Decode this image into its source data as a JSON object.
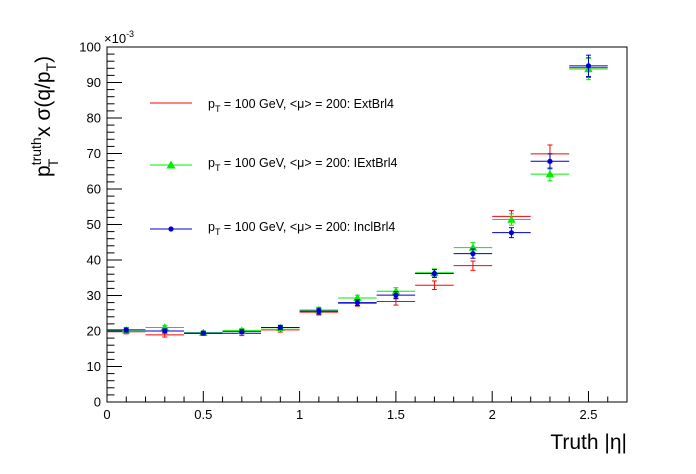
{
  "chart_data": {
    "type": "scatter",
    "title": "",
    "xlabel": "Truth |η|",
    "ylabel": {
      "base": "p",
      "sup": "truth",
      "sub": "T",
      "mid": " x σ(q/p",
      "sub2": "T",
      "end": ")"
    },
    "xlim": [
      0,
      2.7
    ],
    "ylim": [
      0,
      100
    ],
    "y_multiplier": "×10",
    "y_multiplier_exp": "-3",
    "xticks": [
      "0",
      "0.5",
      "1",
      "1.5",
      "2",
      "2.5"
    ],
    "yticks": [
      "0",
      "10",
      "20",
      "30",
      "40",
      "50",
      "60",
      "70",
      "80",
      "90",
      "100"
    ],
    "grid": false,
    "legend_position": "upper-left inside",
    "series": [
      {
        "name": "ExtBrl4",
        "legend": {
          "pre": "p",
          "sub": "T",
          "post": " = 100 GeV, <μ> = 200: ExtBrl4"
        },
        "color": "#ff0000",
        "marker": "none",
        "points": [
          {
            "x": 0.1,
            "xerr": 0.1,
            "y": 19.8,
            "yerr": 0.6
          },
          {
            "x": 0.3,
            "xerr": 0.1,
            "y": 18.9,
            "yerr": 0.6
          },
          {
            "x": 0.5,
            "xerr": 0.1,
            "y": 19.3,
            "yerr": 0.5
          },
          {
            "x": 0.7,
            "xerr": 0.1,
            "y": 19.3,
            "yerr": 0.6
          },
          {
            "x": 0.9,
            "xerr": 0.1,
            "y": 20.3,
            "yerr": 0.6
          },
          {
            "x": 1.1,
            "xerr": 0.1,
            "y": 25.3,
            "yerr": 0.8
          },
          {
            "x": 1.3,
            "xerr": 0.1,
            "y": 27.8,
            "yerr": 0.8
          },
          {
            "x": 1.5,
            "xerr": 0.1,
            "y": 28.3,
            "yerr": 1.0
          },
          {
            "x": 1.7,
            "xerr": 0.1,
            "y": 32.9,
            "yerr": 1.2
          },
          {
            "x": 1.9,
            "xerr": 0.1,
            "y": 38.4,
            "yerr": 1.3
          },
          {
            "x": 2.1,
            "xerr": 0.1,
            "y": 52.3,
            "yerr": 1.6
          },
          {
            "x": 2.3,
            "xerr": 0.1,
            "y": 69.9,
            "yerr": 2.5
          },
          {
            "x": 2.5,
            "xerr": 0.1,
            "y": 94.2,
            "yerr": 2.8
          }
        ]
      },
      {
        "name": "IExtBrl4",
        "legend": {
          "pre": "p",
          "sub": "T",
          "post": " = 100 GeV, <μ> = 200: IExtBrl4"
        },
        "color": "#00ee00",
        "marker": "triangle",
        "points": [
          {
            "x": 0.1,
            "xerr": 0.1,
            "y": 20.2,
            "yerr": 0.6
          },
          {
            "x": 0.3,
            "xerr": 0.1,
            "y": 21.0,
            "yerr": 0.6
          },
          {
            "x": 0.5,
            "xerr": 0.1,
            "y": 19.5,
            "yerr": 0.5
          },
          {
            "x": 0.7,
            "xerr": 0.1,
            "y": 20.1,
            "yerr": 0.6
          },
          {
            "x": 0.9,
            "xerr": 0.1,
            "y": 20.9,
            "yerr": 0.6
          },
          {
            "x": 1.1,
            "xerr": 0.1,
            "y": 25.9,
            "yerr": 0.8
          },
          {
            "x": 1.3,
            "xerr": 0.1,
            "y": 29.3,
            "yerr": 0.8
          },
          {
            "x": 1.5,
            "xerr": 0.1,
            "y": 31.2,
            "yerr": 1.0
          },
          {
            "x": 1.7,
            "xerr": 0.1,
            "y": 36.4,
            "yerr": 1.1
          },
          {
            "x": 1.9,
            "xerr": 0.1,
            "y": 43.5,
            "yerr": 1.4
          },
          {
            "x": 2.1,
            "xerr": 0.1,
            "y": 51.4,
            "yerr": 1.6
          },
          {
            "x": 2.3,
            "xerr": 0.1,
            "y": 64.2,
            "yerr": 1.9
          },
          {
            "x": 2.5,
            "xerr": 0.1,
            "y": 93.8,
            "yerr": 3.0
          }
        ]
      },
      {
        "name": "InclBrl4",
        "legend": {
          "pre": "p",
          "sub": "T",
          "post": " = 100 GeV, <μ> = 200: InclBrl4"
        },
        "color": "#0000cc",
        "marker": "circle",
        "points": [
          {
            "x": 0.1,
            "xerr": 0.1,
            "y": 20.3,
            "yerr": 0.6
          },
          {
            "x": 0.3,
            "xerr": 0.1,
            "y": 20.0,
            "yerr": 0.6
          },
          {
            "x": 0.5,
            "xerr": 0.1,
            "y": 19.4,
            "yerr": 0.5
          },
          {
            "x": 0.7,
            "xerr": 0.1,
            "y": 19.8,
            "yerr": 0.6
          },
          {
            "x": 0.9,
            "xerr": 0.1,
            "y": 21.0,
            "yerr": 0.6
          },
          {
            "x": 1.1,
            "xerr": 0.1,
            "y": 25.6,
            "yerr": 0.8
          },
          {
            "x": 1.3,
            "xerr": 0.1,
            "y": 28.0,
            "yerr": 0.8
          },
          {
            "x": 1.5,
            "xerr": 0.1,
            "y": 30.1,
            "yerr": 1.0
          },
          {
            "x": 1.7,
            "xerr": 0.1,
            "y": 36.2,
            "yerr": 1.1
          },
          {
            "x": 1.9,
            "xerr": 0.1,
            "y": 41.8,
            "yerr": 1.3
          },
          {
            "x": 2.1,
            "xerr": 0.1,
            "y": 47.7,
            "yerr": 1.4
          },
          {
            "x": 2.3,
            "xerr": 0.1,
            "y": 67.8,
            "yerr": 2.1
          },
          {
            "x": 2.5,
            "xerr": 0.1,
            "y": 94.7,
            "yerr": 3.0
          }
        ]
      }
    ]
  }
}
